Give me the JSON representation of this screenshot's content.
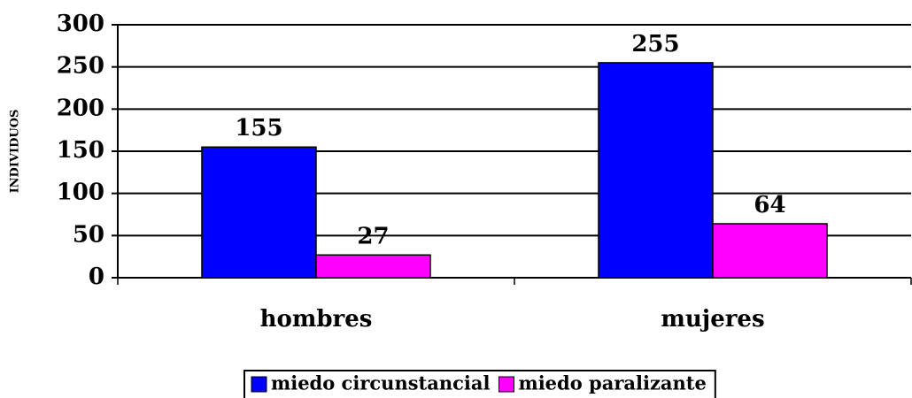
{
  "chart_data": {
    "type": "bar",
    "y_label": "INDIVIDUOS",
    "categories": [
      "hombres",
      "mujeres"
    ],
    "series": [
      {
        "name": "miedo circunstancial",
        "color": "#0000ff",
        "values": [
          155,
          255
        ]
      },
      {
        "name": "miedo paralizante",
        "color": "#ff00ff",
        "values": [
          27,
          64
        ]
      }
    ],
    "ylim": [
      0,
      300
    ],
    "yticks": [
      0,
      50,
      100,
      150,
      200,
      250,
      300
    ],
    "grid": true,
    "legend": "bottom"
  }
}
